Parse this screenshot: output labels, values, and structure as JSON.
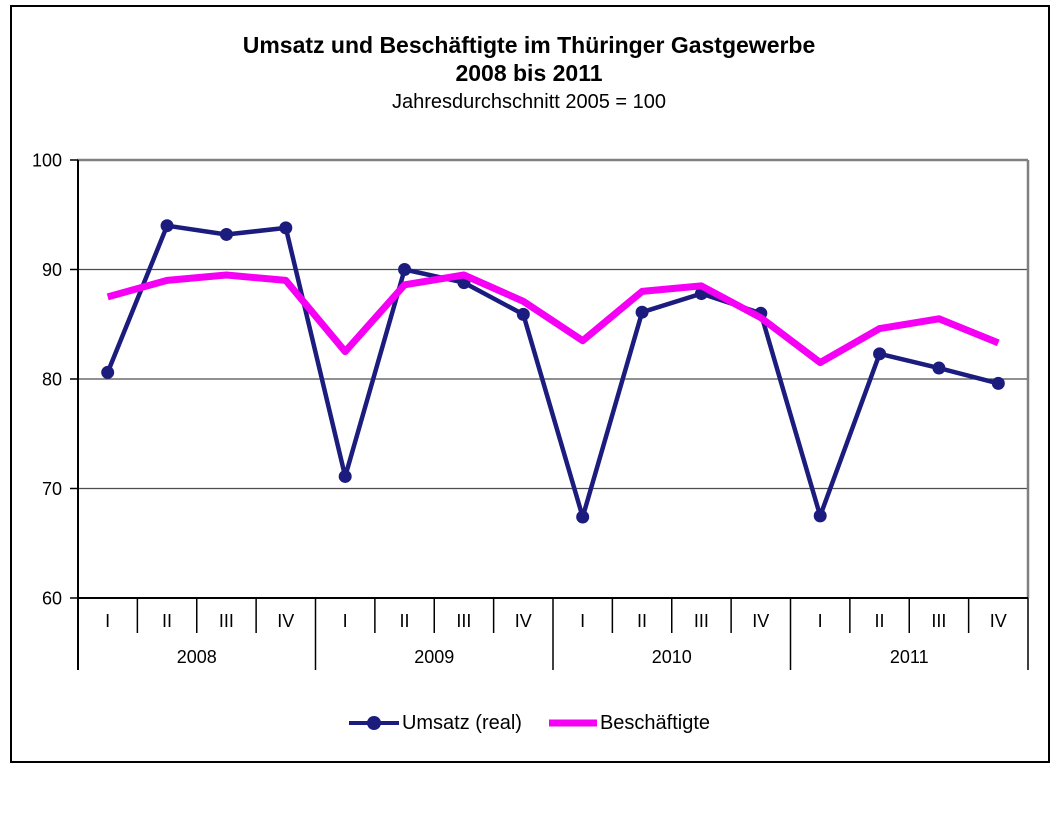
{
  "page": {
    "background": "#ffffff",
    "frame_border_color": "#000000"
  },
  "chart_data": {
    "type": "line",
    "title_line1": "Umsatz und Beschäftigte im Thüringer Gastgewerbe",
    "title_line2": "2008 bis 2011",
    "subtitle": "Jahresdurchschnitt 2005 = 100",
    "categories": [
      "I",
      "II",
      "III",
      "IV",
      "I",
      "II",
      "III",
      "IV",
      "I",
      "II",
      "III",
      "IV",
      "I",
      "II",
      "III",
      "IV"
    ],
    "year_groups": [
      "2008",
      "2009",
      "2010",
      "2011"
    ],
    "quarters_per_year": 4,
    "series": [
      {
        "name": "Umsatz (real)",
        "color": "#1C1C7E",
        "marker": "circle",
        "values": [
          80.6,
          94.0,
          93.2,
          93.8,
          71.1,
          90.0,
          88.8,
          85.9,
          67.4,
          86.1,
          87.8,
          86.0,
          67.5,
          82.3,
          81.0,
          79.6
        ]
      },
      {
        "name": "Beschäftigte",
        "color": "#F500F5",
        "marker": "none",
        "values": [
          87.5,
          89.0,
          89.5,
          89.0,
          82.5,
          88.6,
          89.5,
          87.1,
          83.5,
          88.0,
          88.5,
          85.6,
          81.5,
          84.6,
          85.5,
          83.3
        ]
      }
    ],
    "ylim": [
      60,
      100
    ],
    "yticks": [
      60,
      70,
      80,
      90,
      100
    ],
    "grid": true,
    "legend_position": "bottom",
    "axis_colors": {
      "gridline": "#4d4d4d",
      "frame_top_right": "#808080",
      "axis": "#000000"
    }
  }
}
